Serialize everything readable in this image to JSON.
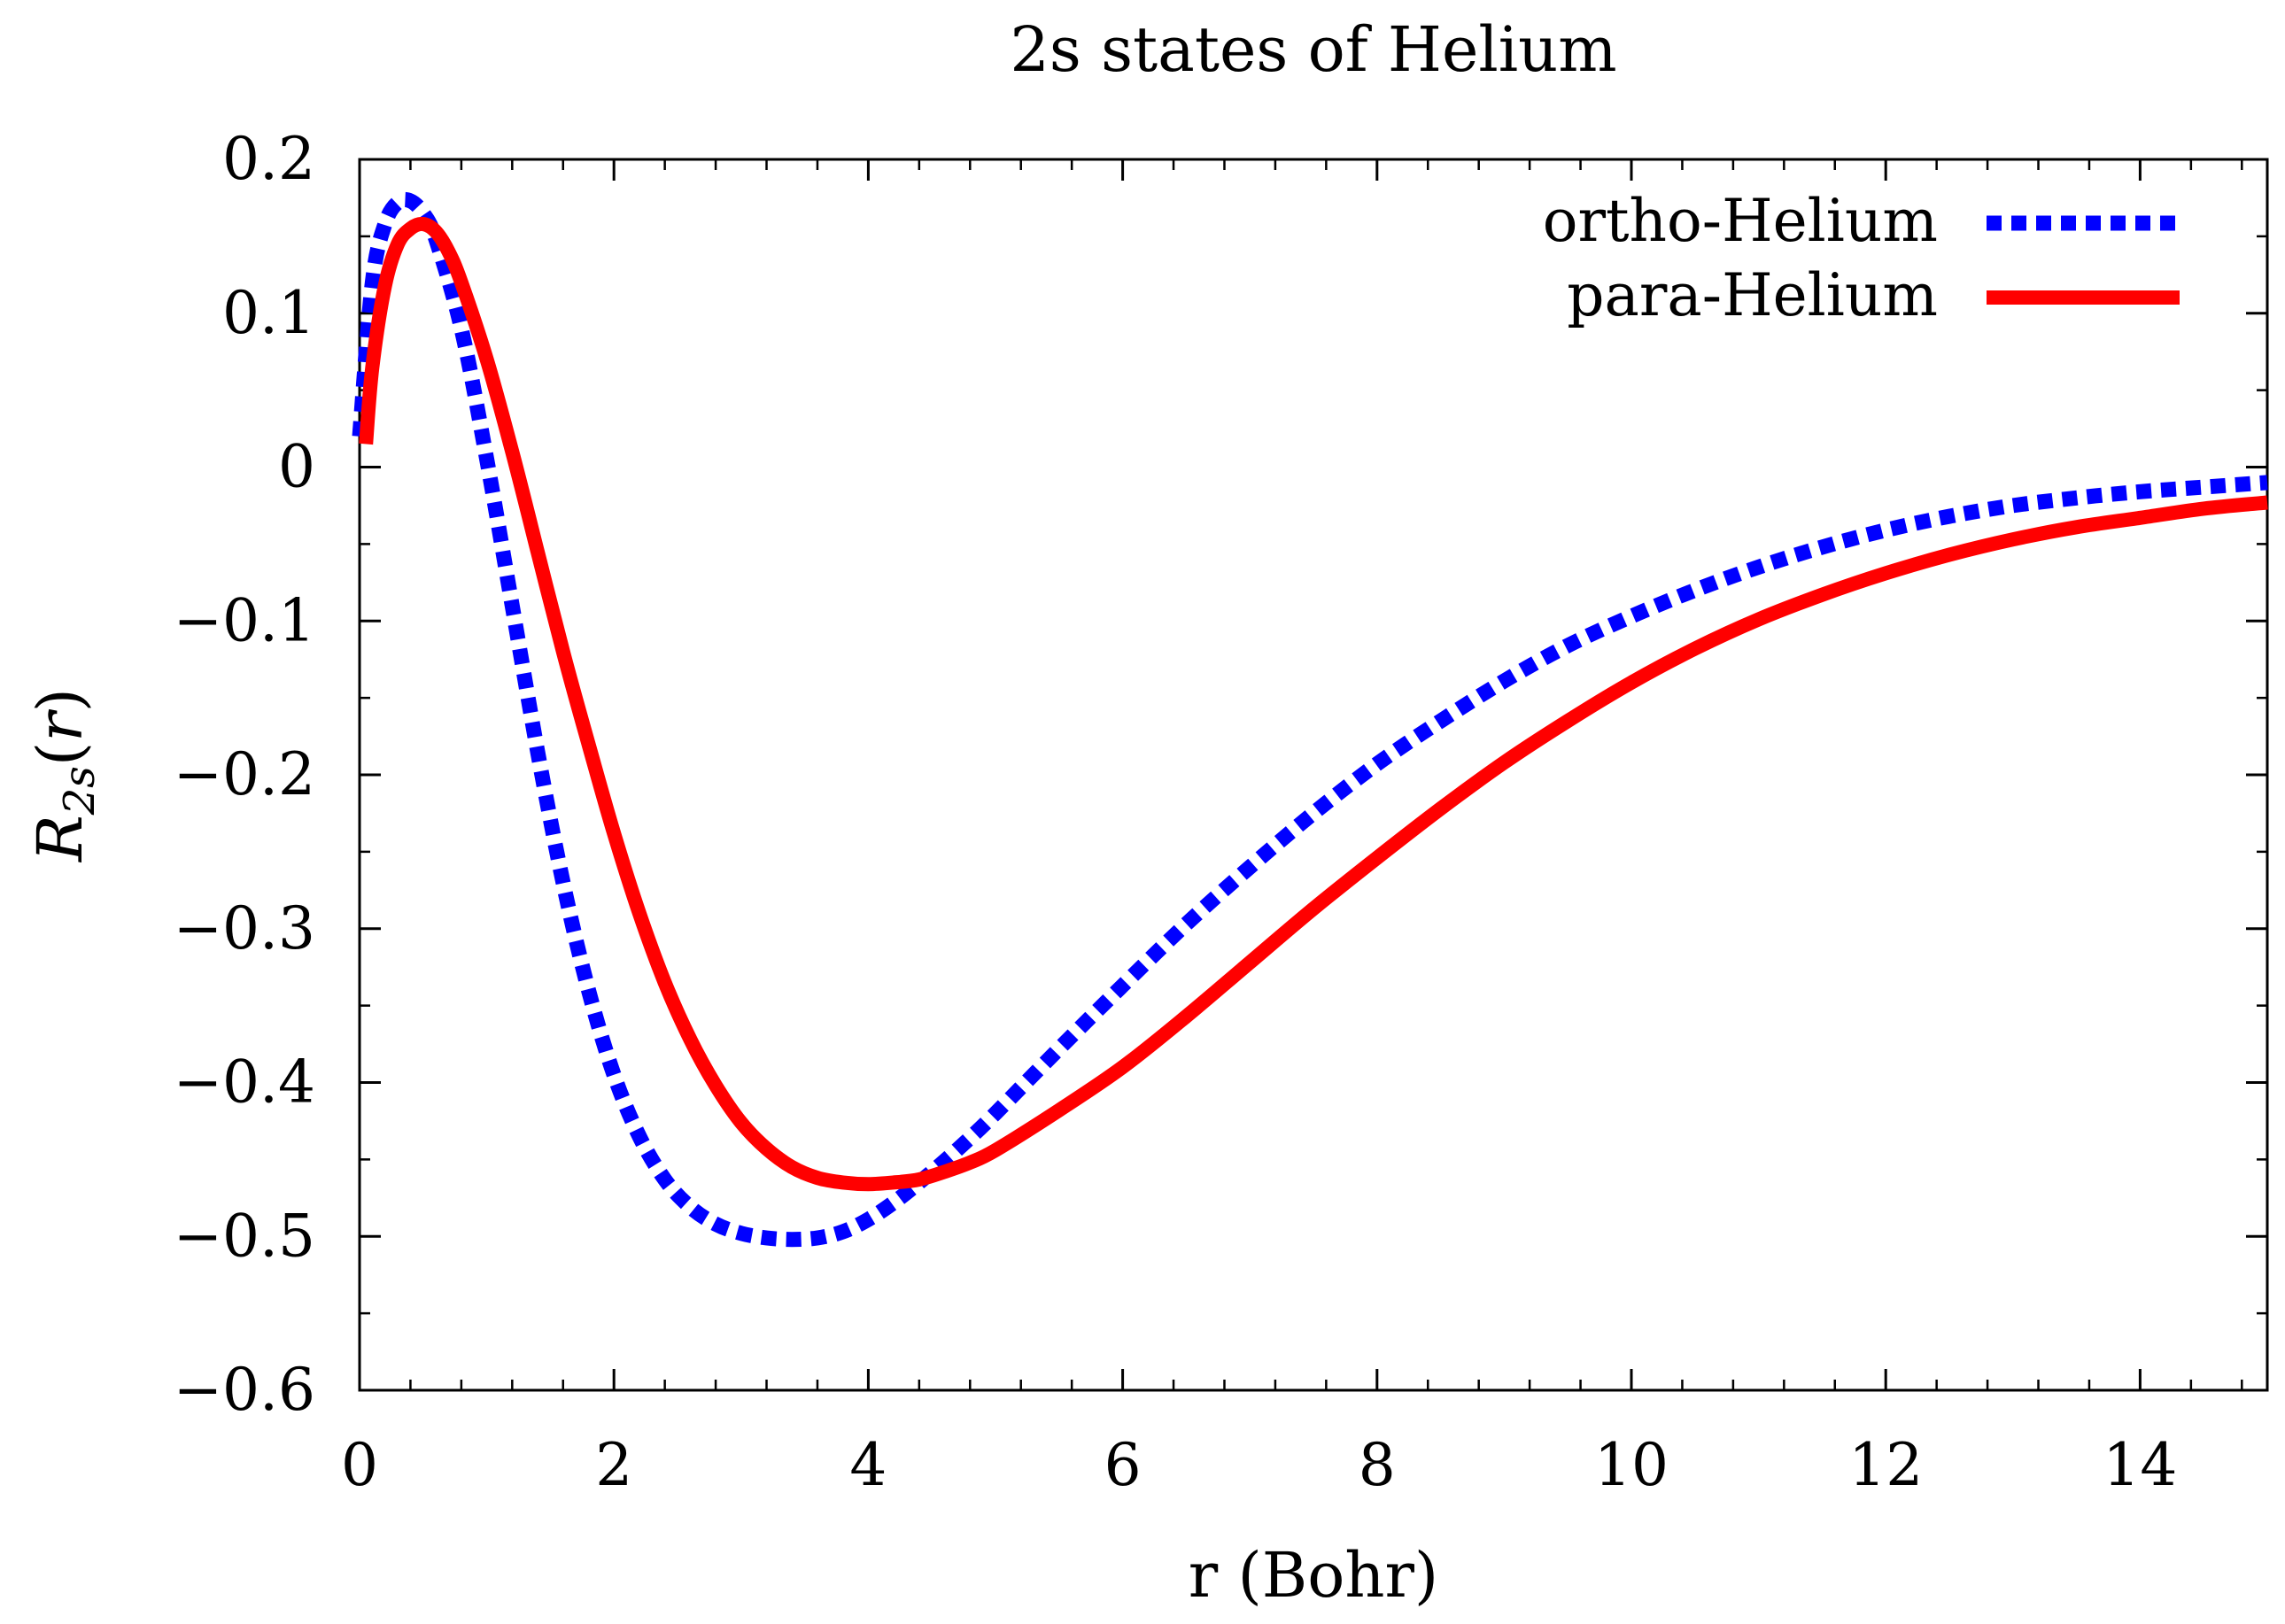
{
  "chart_data": {
    "type": "line",
    "title": "2s states of Helium",
    "xlabel": "r (Bohr)",
    "ylabel": {
      "symbol": "R",
      "subscript": "2s",
      "open_paren": "(",
      "argument": "r",
      "close_paren": ")"
    },
    "xlim": [
      0,
      15
    ],
    "ylim": [
      -0.6,
      0.2
    ],
    "x_ticks": [
      0,
      2,
      4,
      6,
      8,
      10,
      12,
      14
    ],
    "x_tick_labels": [
      "0",
      "2",
      "4",
      "6",
      "8",
      "10",
      "12",
      "14"
    ],
    "x_minor_step": 0.4,
    "y_ticks": [
      0.2,
      0.1,
      0,
      -0.1,
      -0.2,
      -0.3,
      -0.4,
      -0.5,
      -0.6
    ],
    "y_tick_labels": [
      "0.2",
      "0.1",
      "0",
      "−0.1",
      "−0.2",
      "−0.3",
      "−0.4",
      "−0.5",
      "−0.6"
    ],
    "grid": false,
    "legend_position": "top-right",
    "series": [
      {
        "name": "ortho-Helium",
        "color": "#0000ff",
        "style": "dotted",
        "x": [
          0.0,
          0.1,
          0.2,
          0.3,
          0.4,
          0.5,
          0.6,
          0.8,
          1.0,
          1.2,
          1.4,
          1.6,
          1.8,
          2.0,
          2.2,
          2.4,
          2.6,
          2.8,
          3.0,
          3.2,
          3.4,
          3.6,
          3.8,
          4.0,
          4.2,
          4.4,
          4.6,
          4.8,
          5.0,
          5.5,
          6.0,
          6.5,
          7.0,
          7.5,
          8.0,
          8.5,
          9.0,
          9.5,
          10.0,
          10.5,
          11.0,
          11.5,
          12.0,
          12.5,
          13.0,
          13.5,
          14.0,
          14.5,
          15.0
        ],
        "values": [
          0.02,
          0.12,
          0.158,
          0.172,
          0.173,
          0.165,
          0.148,
          0.09,
          0.005,
          -0.09,
          -0.185,
          -0.27,
          -0.34,
          -0.395,
          -0.435,
          -0.463,
          -0.481,
          -0.492,
          -0.498,
          -0.501,
          -0.502,
          -0.501,
          -0.497,
          -0.489,
          -0.478,
          -0.465,
          -0.451,
          -0.436,
          -0.42,
          -0.378,
          -0.337,
          -0.297,
          -0.26,
          -0.225,
          -0.193,
          -0.165,
          -0.139,
          -0.116,
          -0.097,
          -0.08,
          -0.065,
          -0.052,
          -0.041,
          -0.032,
          -0.025,
          -0.02,
          -0.016,
          -0.013,
          -0.01
        ]
      },
      {
        "name": "para-Helium",
        "color": "#ff0000",
        "style": "solid",
        "x": [
          0.05,
          0.1,
          0.2,
          0.3,
          0.4,
          0.5,
          0.6,
          0.7,
          0.8,
          1.0,
          1.2,
          1.4,
          1.6,
          1.8,
          2.0,
          2.2,
          2.4,
          2.6,
          2.8,
          3.0,
          3.2,
          3.4,
          3.6,
          3.8,
          4.0,
          4.2,
          4.4,
          4.6,
          4.8,
          5.0,
          5.5,
          6.0,
          6.5,
          7.0,
          7.5,
          8.0,
          8.5,
          9.0,
          9.5,
          10.0,
          10.5,
          11.0,
          11.5,
          12.0,
          12.5,
          13.0,
          13.5,
          14.0,
          14.5,
          15.0
        ],
        "values": [
          0.015,
          0.065,
          0.118,
          0.145,
          0.155,
          0.158,
          0.153,
          0.14,
          0.12,
          0.07,
          0.01,
          -0.055,
          -0.12,
          -0.18,
          -0.238,
          -0.29,
          -0.335,
          -0.372,
          -0.402,
          -0.426,
          -0.443,
          -0.455,
          -0.462,
          -0.465,
          -0.466,
          -0.465,
          -0.463,
          -0.458,
          -0.452,
          -0.444,
          -0.418,
          -0.39,
          -0.357,
          -0.322,
          -0.287,
          -0.254,
          -0.222,
          -0.192,
          -0.165,
          -0.14,
          -0.118,
          -0.099,
          -0.083,
          -0.069,
          -0.057,
          -0.047,
          -0.039,
          -0.033,
          -0.027,
          -0.023
        ]
      }
    ]
  }
}
